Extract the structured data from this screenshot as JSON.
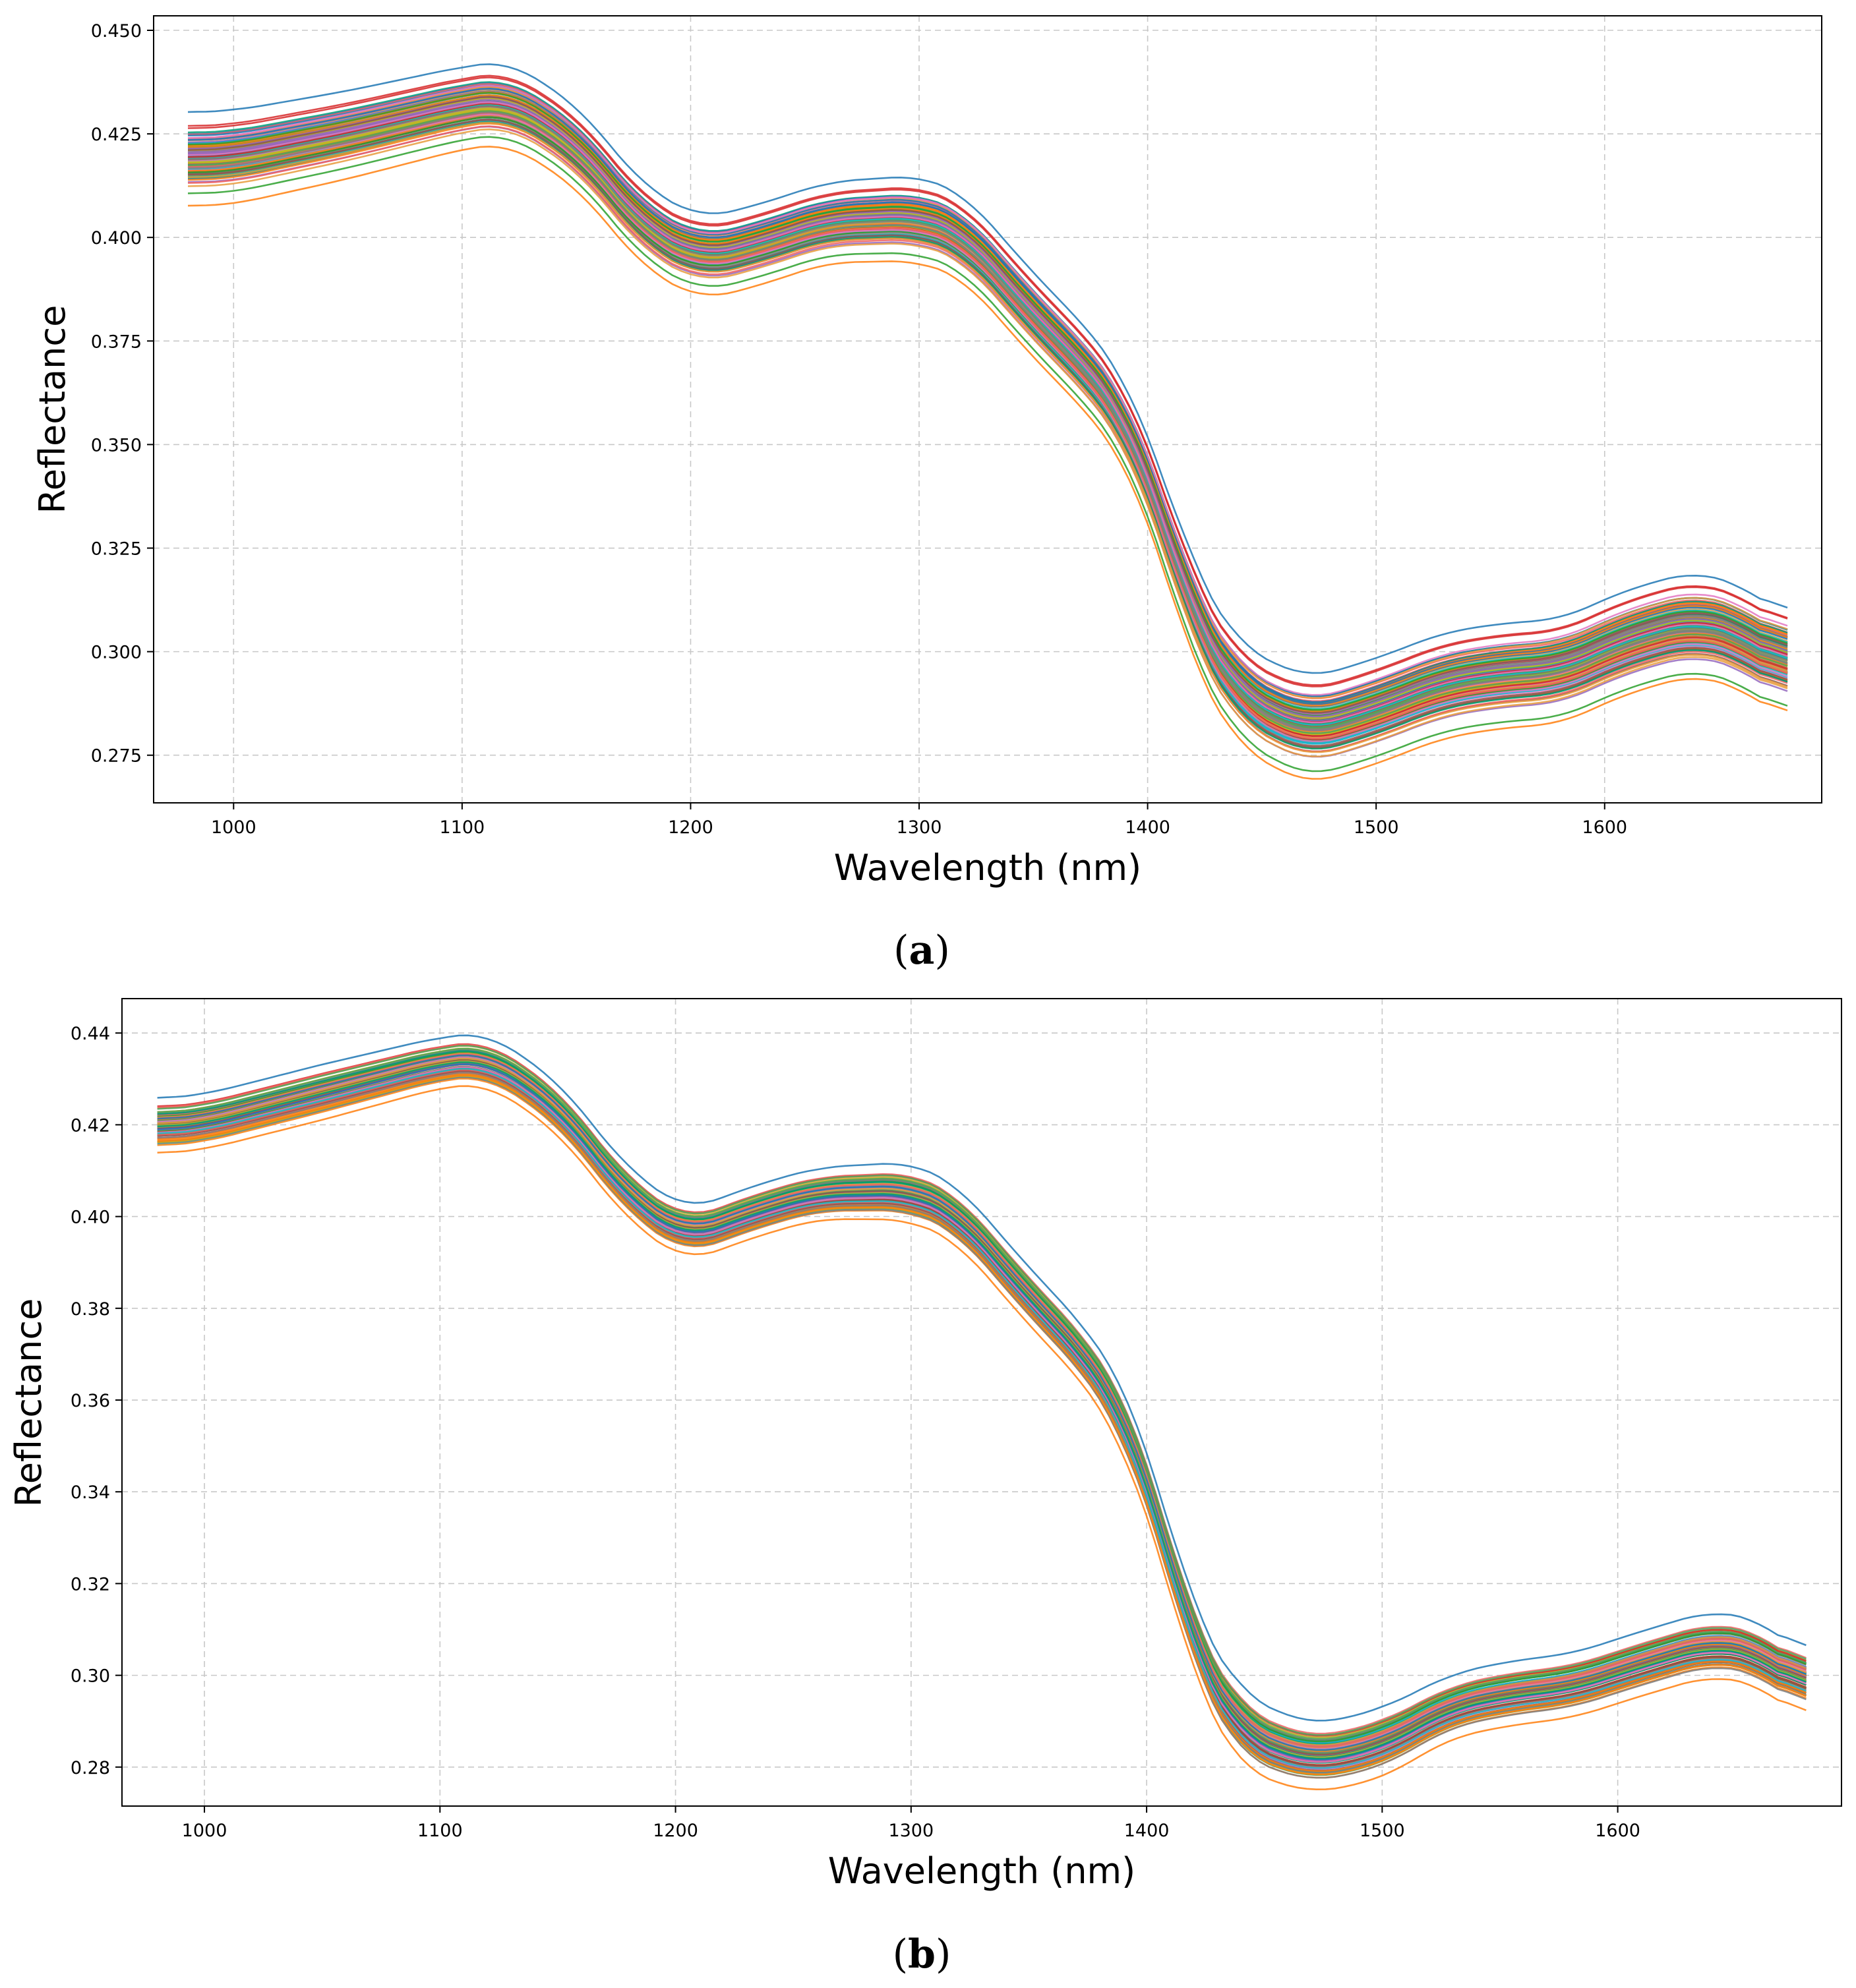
{
  "chart_data": [
    {
      "type": "line",
      "panel_label": {
        "open": "(",
        "letter": "a",
        "close": ")"
      },
      "xlabel": "Wavelength (nm)",
      "ylabel": "Reflectance",
      "xlim": [
        965,
        1695
      ],
      "ylim": [
        0.2635,
        0.4535
      ],
      "xticks": [
        1000,
        1100,
        1200,
        1300,
        1400,
        1500,
        1600
      ],
      "xtick_labels": [
        "1000",
        "1100",
        "1200",
        "1300",
        "1400",
        "1500",
        "1600"
      ],
      "yticks": [
        0.275,
        0.3,
        0.325,
        0.35,
        0.375,
        0.4,
        0.425,
        0.45
      ],
      "ytick_labels": [
        "0.275",
        "0.300",
        "0.325",
        "0.350",
        "0.375",
        "0.400",
        "0.425",
        "0.450"
      ],
      "grid": true,
      "series_count": 120,
      "spectrum_profile": {
        "wavelengths": [
          980,
          1000,
          1050,
          1100,
          1120,
          1150,
          1180,
          1205,
          1230,
          1260,
          1300,
          1320,
          1350,
          1375,
          1390,
          1405,
          1420,
          1440,
          1470,
          1500,
          1530,
          1560,
          1580,
          1610,
          1640,
          1660,
          1680
        ],
        "mean_reflectance": [
          0.4185,
          0.419,
          0.4245,
          0.431,
          0.4325,
          0.422,
          0.402,
          0.3945,
          0.398,
          0.4035,
          0.4045,
          0.4,
          0.381,
          0.367,
          0.356,
          0.335,
          0.308,
          0.289,
          0.2805,
          0.2855,
          0.292,
          0.2945,
          0.295,
          0.3025,
          0.307,
          0.3035,
          0.296
        ],
        "spread": [
          0.0095,
          0.0095,
          0.009,
          0.0085,
          0.0085,
          0.0085,
          0.0085,
          0.0085,
          0.0085,
          0.0085,
          0.009,
          0.009,
          0.009,
          0.009,
          0.009,
          0.0095,
          0.0105,
          0.011,
          0.0115,
          0.0115,
          0.0115,
          0.0115,
          0.0115,
          0.0115,
          0.0115,
          0.0115,
          0.0115
        ]
      }
    },
    {
      "type": "line",
      "panel_label": {
        "open": "(",
        "letter": "b",
        "close": ")"
      },
      "xlabel": "Wavelength (nm)",
      "ylabel": "Reflectance",
      "xlim": [
        965,
        1695
      ],
      "ylim": [
        0.2715,
        0.4475
      ],
      "xticks": [
        1000,
        1100,
        1200,
        1300,
        1400,
        1500,
        1600
      ],
      "xtick_labels": [
        "1000",
        "1100",
        "1200",
        "1300",
        "1400",
        "1500",
        "1600"
      ],
      "yticks": [
        0.28,
        0.3,
        0.32,
        0.34,
        0.36,
        0.38,
        0.4,
        0.42,
        0.44
      ],
      "ytick_labels": [
        "0.28",
        "0.30",
        "0.32",
        "0.34",
        "0.36",
        "0.38",
        "0.40",
        "0.42",
        "0.44"
      ],
      "grid": true,
      "series_count": 100,
      "spectrum_profile": {
        "wavelengths": [
          980,
          1000,
          1050,
          1100,
          1120,
          1150,
          1180,
          1205,
          1230,
          1260,
          1300,
          1320,
          1350,
          1375,
          1390,
          1405,
          1420,
          1440,
          1470,
          1500,
          1530,
          1560,
          1580,
          1610,
          1640,
          1660,
          1680
        ],
        "mean_reflectance": [
          0.4195,
          0.4205,
          0.427,
          0.4335,
          0.4345,
          0.424,
          0.4045,
          0.3955,
          0.4005,
          0.405,
          0.4055,
          0.4005,
          0.3825,
          0.369,
          0.357,
          0.335,
          0.306,
          0.2875,
          0.2815,
          0.285,
          0.2935,
          0.2965,
          0.2975,
          0.3025,
          0.307,
          0.305,
          0.297
        ],
        "spread": [
          0.0055,
          0.0055,
          0.0055,
          0.005,
          0.005,
          0.005,
          0.005,
          0.005,
          0.005,
          0.005,
          0.0055,
          0.0055,
          0.0055,
          0.0055,
          0.006,
          0.006,
          0.0065,
          0.007,
          0.0065,
          0.0065,
          0.006,
          0.006,
          0.006,
          0.006,
          0.006,
          0.006,
          0.006
        ]
      }
    }
  ],
  "palette": [
    "#1f77b4",
    "#ff7f0e",
    "#2ca02c",
    "#d62728",
    "#9467bd",
    "#8c564b",
    "#e377c2",
    "#7f7f7f",
    "#bcbd22",
    "#17becf",
    "#009e73",
    "#f06060",
    "#e89b3c",
    "#4fa35a"
  ]
}
